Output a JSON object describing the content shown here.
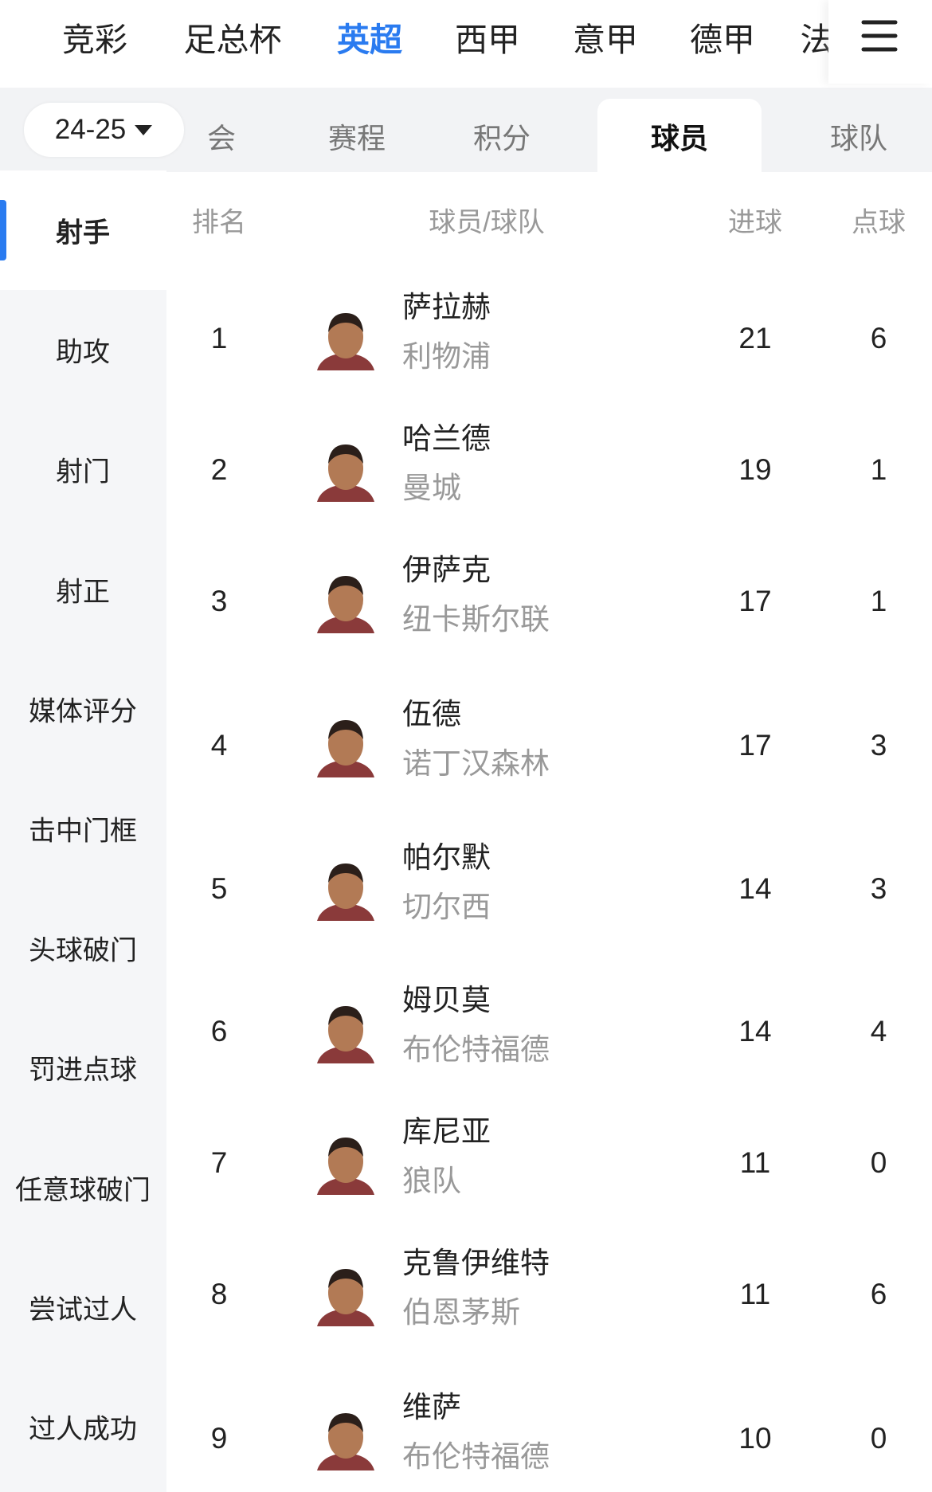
{
  "league_tabs": [
    "竞彩",
    "足总杯",
    "英超",
    "西甲",
    "意甲",
    "德甲",
    "法"
  ],
  "active_league": "英超",
  "season": "24-25",
  "sub_tabs": [
    "会",
    "赛程",
    "积分",
    "球员",
    "球队"
  ],
  "active_sub_tab": "球员",
  "sidebar": [
    "射手",
    "助攻",
    "射门",
    "射正",
    "媒体评分",
    "击中门框",
    "头球破门",
    "罚进点球",
    "任意球破门",
    "尝试过人",
    "过人成功"
  ],
  "active_sidebar": "射手",
  "table": {
    "headers": [
      "排名",
      "球员/球队",
      "进球",
      "点球"
    ],
    "rows": [
      [
        1,
        "萨拉赫",
        "利物浦",
        21,
        6
      ],
      [
        2,
        "哈兰德",
        "曼城",
        19,
        1
      ],
      [
        3,
        "伊萨克",
        "纽卡斯尔联",
        17,
        1
      ],
      [
        4,
        "伍德",
        "诺丁汉森林",
        17,
        3
      ],
      [
        5,
        "帕尔默",
        "切尔西",
        14,
        3
      ],
      [
        6,
        "姆贝莫",
        "布伦特福德",
        14,
        4
      ],
      [
        7,
        "库尼亚",
        "狼队",
        11,
        0
      ],
      [
        8,
        "克鲁伊维特",
        "伯恩茅斯",
        11,
        6
      ],
      [
        9,
        "维萨",
        "布伦特福德",
        10,
        0
      ]
    ]
  }
}
